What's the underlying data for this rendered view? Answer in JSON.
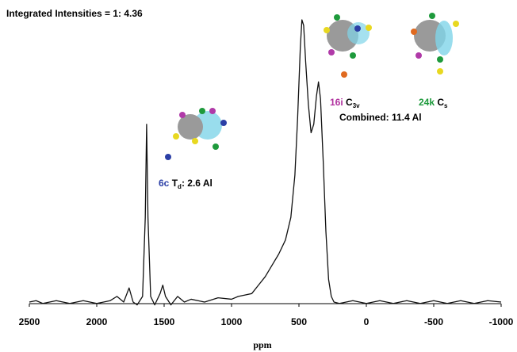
{
  "chart_data": {
    "type": "line",
    "title": "Integrated Intensities = 1: 4.36",
    "x_label": "ppm",
    "xlim": [
      2500,
      -1000
    ],
    "xticks": [
      2500,
      2000,
      1500,
      1000,
      500,
      0,
      -500,
      -1000
    ],
    "ylim": [
      0,
      100
    ],
    "color": "#111111",
    "x": [
      2500,
      2450,
      2400,
      2300,
      2200,
      2100,
      2000,
      1900,
      1850,
      1800,
      1760,
      1730,
      1700,
      1660,
      1640,
      1630,
      1620,
      1600,
      1570,
      1530,
      1510,
      1490,
      1450,
      1400,
      1350,
      1300,
      1200,
      1100,
      1000,
      950,
      900,
      850,
      800,
      750,
      700,
      650,
      600,
      560,
      530,
      510,
      490,
      478,
      465,
      450,
      430,
      410,
      390,
      370,
      355,
      340,
      320,
      300,
      280,
      260,
      240,
      200,
      100,
      0,
      -100,
      -200,
      -300,
      -400,
      -500,
      -600,
      -700,
      -800,
      -900,
      -1000
    ],
    "values": [
      0,
      0.5,
      -0.5,
      0.5,
      -0.5,
      0.5,
      -0.5,
      0.5,
      2,
      0,
      5,
      0,
      -1,
      2,
      30,
      63,
      30,
      2,
      -1,
      3,
      6,
      2,
      -1,
      2,
      0,
      1,
      0,
      1.5,
      1,
      2,
      2.5,
      3,
      6,
      9,
      13,
      17,
      22,
      30,
      45,
      65,
      90,
      100,
      98,
      85,
      70,
      60,
      63,
      73,
      78,
      72,
      50,
      25,
      8,
      2,
      0,
      -0.5,
      0.5,
      -0.5,
      0.5,
      -0.5,
      0.5,
      -0.5,
      0.5,
      -0.5,
      0.5,
      -0.5,
      0.5,
      0
    ],
    "annotations": [
      {
        "site": "6c",
        "color": "#2b3fa6",
        "symmetry": "T",
        "subscript": "d",
        "suffix": ": 2.6 Al"
      },
      {
        "site": "16i",
        "color": "#b0309e",
        "symmetry": "C",
        "subscript": "3v"
      },
      {
        "site": "24k",
        "color": "#1e9a3c",
        "symmetry": "C",
        "subscript": "s"
      },
      {
        "text": "Combined: 11.4 Al"
      }
    ]
  }
}
